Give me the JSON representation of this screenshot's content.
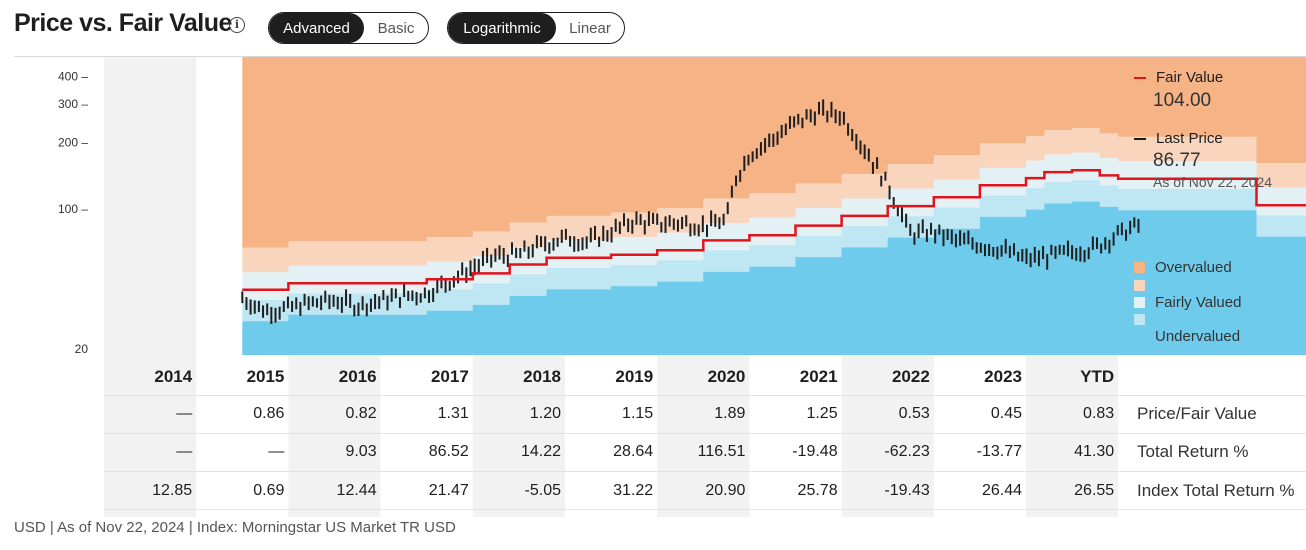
{
  "header": {
    "title": "Price vs. Fair Value",
    "info_icon": "info-icon",
    "view_toggle": {
      "options": [
        "Advanced",
        "Basic"
      ],
      "selected": "Advanced"
    },
    "scale_toggle": {
      "options": [
        "Logarithmic",
        "Linear"
      ],
      "selected": "Logarithmic"
    }
  },
  "legend": {
    "fair_value_label": "Fair Value",
    "fair_value": "104.00",
    "last_price_label": "Last Price",
    "last_price": "86.77",
    "as_of": "As of Nov 22, 2024",
    "valuation_bands": [
      {
        "label": "Overvalued",
        "color": "#f5b386"
      },
      {
        "label": "",
        "color": "#f9d5bd"
      },
      {
        "label": "Fairly Valued",
        "color": "#e3f1f5"
      },
      {
        "label": "",
        "color": "#bfe6f3"
      },
      {
        "label": "Undervalued",
        "color": "#6fcbeb"
      }
    ]
  },
  "colors": {
    "fair_value_line": "#e1141c",
    "price_bars": "#1e1e1e",
    "alt_column": "#f2f2f2"
  },
  "chart_data": {
    "type": "line",
    "yscale": "log",
    "ylim": [
      20,
      450
    ],
    "yticks": [
      {
        "value": 400,
        "label": "400 –"
      },
      {
        "value": 300,
        "label": "300 –"
      },
      {
        "value": 200,
        "label": "200 –"
      },
      {
        "value": 100,
        "label": "100 –"
      },
      {
        "value": 20,
        "label": "20"
      }
    ],
    "categories": [
      "2014",
      "2015",
      "2016",
      "2017",
      "2018",
      "2019",
      "2020",
      "2021",
      "2022",
      "2023",
      "YTD"
    ],
    "fair_value_series": [
      [
        2015.0,
        43
      ],
      [
        2015.5,
        43
      ],
      [
        2015.5,
        46
      ],
      [
        2017.0,
        46
      ],
      [
        2017.0,
        48
      ],
      [
        2017.5,
        48
      ],
      [
        2017.5,
        51
      ],
      [
        2017.9,
        51
      ],
      [
        2017.9,
        56
      ],
      [
        2018.3,
        56
      ],
      [
        2018.3,
        60
      ],
      [
        2019.0,
        60
      ],
      [
        2019.0,
        62
      ],
      [
        2019.5,
        62
      ],
      [
        2019.5,
        65
      ],
      [
        2020.0,
        65
      ],
      [
        2020.0,
        72
      ],
      [
        2020.5,
        72
      ],
      [
        2020.5,
        76
      ],
      [
        2021.0,
        76
      ],
      [
        2021.0,
        84
      ],
      [
        2021.5,
        84
      ],
      [
        2021.5,
        93
      ],
      [
        2022.0,
        93
      ],
      [
        2022.0,
        103
      ],
      [
        2022.5,
        103
      ],
      [
        2022.5,
        113
      ],
      [
        2023.0,
        113
      ],
      [
        2023.0,
        128
      ],
      [
        2023.5,
        128
      ],
      [
        2023.5,
        138
      ],
      [
        2023.7,
        138
      ],
      [
        2023.7,
        147
      ],
      [
        2024.0,
        147
      ],
      [
        2024.0,
        150
      ],
      [
        2024.3,
        150
      ],
      [
        2024.3,
        142
      ],
      [
        2024.5,
        142
      ],
      [
        2024.5,
        137
      ],
      [
        2026.0,
        137
      ],
      [
        2026.0,
        104
      ],
      [
        2026.8,
        104
      ]
    ],
    "price_series": [
      [
        2015.0,
        40
      ],
      [
        2015.25,
        35
      ],
      [
        2015.5,
        36
      ],
      [
        2015.75,
        38
      ],
      [
        2016.0,
        39
      ],
      [
        2016.25,
        37
      ],
      [
        2016.5,
        39
      ],
      [
        2016.75,
        41
      ],
      [
        2017.0,
        42
      ],
      [
        2017.25,
        48
      ],
      [
        2017.5,
        55
      ],
      [
        2017.75,
        62
      ],
      [
        2018.0,
        63
      ],
      [
        2018.25,
        70
      ],
      [
        2018.5,
        75
      ],
      [
        2018.75,
        72
      ],
      [
        2019.0,
        80
      ],
      [
        2019.25,
        90
      ],
      [
        2019.5,
        87
      ],
      [
        2019.75,
        88
      ],
      [
        2020.0,
        85
      ],
      [
        2020.25,
        90
      ],
      [
        2020.35,
        140
      ],
      [
        2020.5,
        180
      ],
      [
        2020.75,
        210
      ],
      [
        2021.0,
        250
      ],
      [
        2021.25,
        280
      ],
      [
        2021.5,
        270
      ],
      [
        2021.75,
        190
      ],
      [
        2022.0,
        130
      ],
      [
        2022.25,
        78
      ],
      [
        2022.5,
        80
      ],
      [
        2022.75,
        73
      ],
      [
        2023.0,
        70
      ],
      [
        2023.25,
        66
      ],
      [
        2023.5,
        60
      ],
      [
        2023.75,
        62
      ],
      [
        2024.0,
        65
      ],
      [
        2024.25,
        68
      ],
      [
        2024.5,
        78
      ],
      [
        2024.75,
        86.77
      ]
    ],
    "table": {
      "rows": [
        {
          "label": "Price/Fair Value",
          "values": [
            "—",
            "0.86",
            "0.82",
            "1.31",
            "1.20",
            "1.15",
            "1.89",
            "1.25",
            "0.53",
            "0.45",
            "0.83"
          ]
        },
        {
          "label": "Total Return %",
          "values": [
            "—",
            "—",
            "9.03",
            "86.52",
            "14.22",
            "28.64",
            "116.51",
            "-19.48",
            "-62.23",
            "-13.77",
            "41.30"
          ]
        },
        {
          "label": "Index Total Return %",
          "values": [
            "12.85",
            "0.69",
            "12.44",
            "21.47",
            "-5.05",
            "31.22",
            "20.90",
            "25.78",
            "-19.43",
            "26.44",
            "26.55"
          ]
        }
      ]
    }
  },
  "footnote": "USD | As of Nov 22, 2024 | Index: Morningstar US Market TR USD"
}
